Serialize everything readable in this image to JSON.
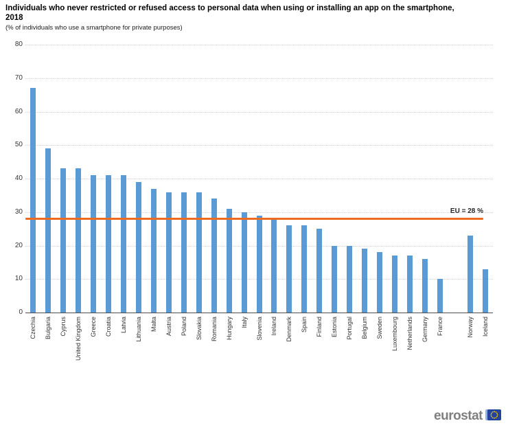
{
  "header": {
    "title": "Individuals who never restricted or refused access to personal data when using or installing an app on the smartphone, 2018",
    "subtitle": "(% of individuals who use a smartphone for private purposes)"
  },
  "chart_data": {
    "type": "bar",
    "title": "Individuals who never restricted or refused access to personal data when using or installing an app on the smartphone, 2018",
    "subtitle": "(% of individuals who use a smartphone for private purposes)",
    "categories": [
      "Czechia",
      "Bulgaria",
      "Cyprus",
      "United Kingdom",
      "Greece",
      "Croatia",
      "Latvia",
      "Lithuania",
      "Malta",
      "Austria",
      "Poland",
      "Slovakia",
      "Romania",
      "Hungary",
      "Italy",
      "Slovenia",
      "Ireland",
      "Denmark",
      "Spain",
      "Finland",
      "Estonia",
      "Portugal",
      "Belgium",
      "Sweden",
      "Luxembourg",
      "Netherlands",
      "Germany",
      "France",
      "Norway",
      "Iceland"
    ],
    "values": [
      67,
      49,
      43,
      43,
      41,
      41,
      41,
      39,
      37,
      36,
      36,
      36,
      34,
      31,
      30,
      29,
      28,
      26,
      26,
      25,
      20,
      20,
      19,
      18,
      17,
      17,
      16,
      10,
      23,
      13
    ],
    "xlabel": "",
    "ylabel": "",
    "ylim": [
      0,
      80
    ],
    "ytick_step": 10,
    "grid": true,
    "legend": false,
    "separator_after": "France",
    "reference_line": {
      "value": 28,
      "label": "EU = 28 %"
    },
    "colors": {
      "bar": "#5b9bd5",
      "reference_line": "#ec6b1f",
      "gridline": "#cfcfcf",
      "axis": "#4d4d4d"
    }
  },
  "footer": {
    "logo_text": "eurostat"
  }
}
